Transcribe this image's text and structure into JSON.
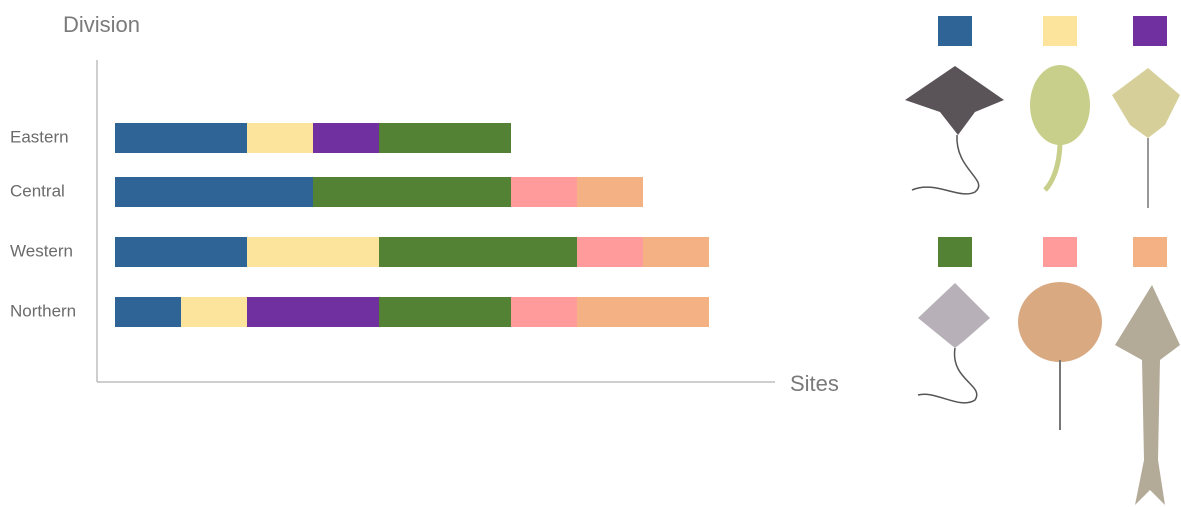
{
  "chart_data": {
    "type": "bar",
    "orientation": "horizontal",
    "stacked": true,
    "y_label": "Division",
    "x_label": "Sites",
    "categories": [
      "Eastern",
      "Central",
      "Western",
      "Northern"
    ],
    "xlim": [
      0,
      10
    ],
    "series": [
      {
        "color": "#2e6496",
        "values": [
          2,
          3,
          2,
          1
        ]
      },
      {
        "color": "#fde49c",
        "values": [
          1,
          0,
          2,
          1
        ]
      },
      {
        "color": "#7030a0",
        "values": [
          1,
          0,
          0,
          2
        ]
      },
      {
        "color": "#548235",
        "values": [
          2,
          3,
          3,
          2
        ]
      },
      {
        "color": "#ff9b9b",
        "values": [
          0,
          1,
          1,
          1
        ]
      },
      {
        "color": "#f4b183",
        "values": [
          0,
          1,
          1,
          2
        ]
      }
    ]
  }
}
